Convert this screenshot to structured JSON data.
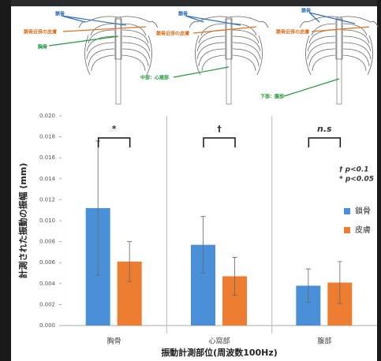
{
  "illustration": {
    "labels": [
      "鎖骨",
      "鎖骨近傍の皮膚",
      "胸骨",
      "鎖骨",
      "鎖骨近傍の皮膚",
      "中部：心窩部",
      "鎖骨",
      "鎖骨近傍の皮膚",
      "下部：腹部"
    ]
  },
  "chart_data": {
    "type": "bar",
    "y_label": "計測された振動の振幅 (mm)",
    "x_label": "振動計測部位(周波数100Hz)",
    "categories": [
      "胸骨",
      "心窩部",
      "腹部"
    ],
    "series": [
      {
        "name": "鎖骨",
        "color": "#4a90d9",
        "values": [
          0.0112,
          0.0077,
          0.0038
        ],
        "errors": [
          0.0064,
          0.0027,
          0.0016
        ]
      },
      {
        "name": "皮膚",
        "color": "#ed7d31",
        "values": [
          0.0061,
          0.0047,
          0.0041
        ],
        "errors": [
          0.0019,
          0.0018,
          0.002
        ]
      }
    ],
    "significance": [
      "*",
      "†",
      "n.s"
    ],
    "notes": [
      "† p<0.1",
      "* p<0.05"
    ],
    "ylim": [
      0,
      0.02
    ],
    "yticks": [
      {
        "value": 0,
        "label": "0.000"
      },
      {
        "value": 0.002,
        "label": "0.002"
      },
      {
        "value": 0.004,
        "label": "0.004"
      },
      {
        "value": 0.006,
        "label": "0.006"
      },
      {
        "value": 0.008,
        "label": "0.008"
      },
      {
        "value": 0.01,
        "label": "0.010"
      },
      {
        "value": 0.012,
        "label": "0.012"
      },
      {
        "value": 0.014,
        "label": "0.014"
      },
      {
        "value": 0.016,
        "label": "0.016"
      },
      {
        "value": 0.018,
        "label": "0.018"
      },
      {
        "value": 0.02,
        "label": "0.020"
      }
    ],
    "legend": "right"
  }
}
